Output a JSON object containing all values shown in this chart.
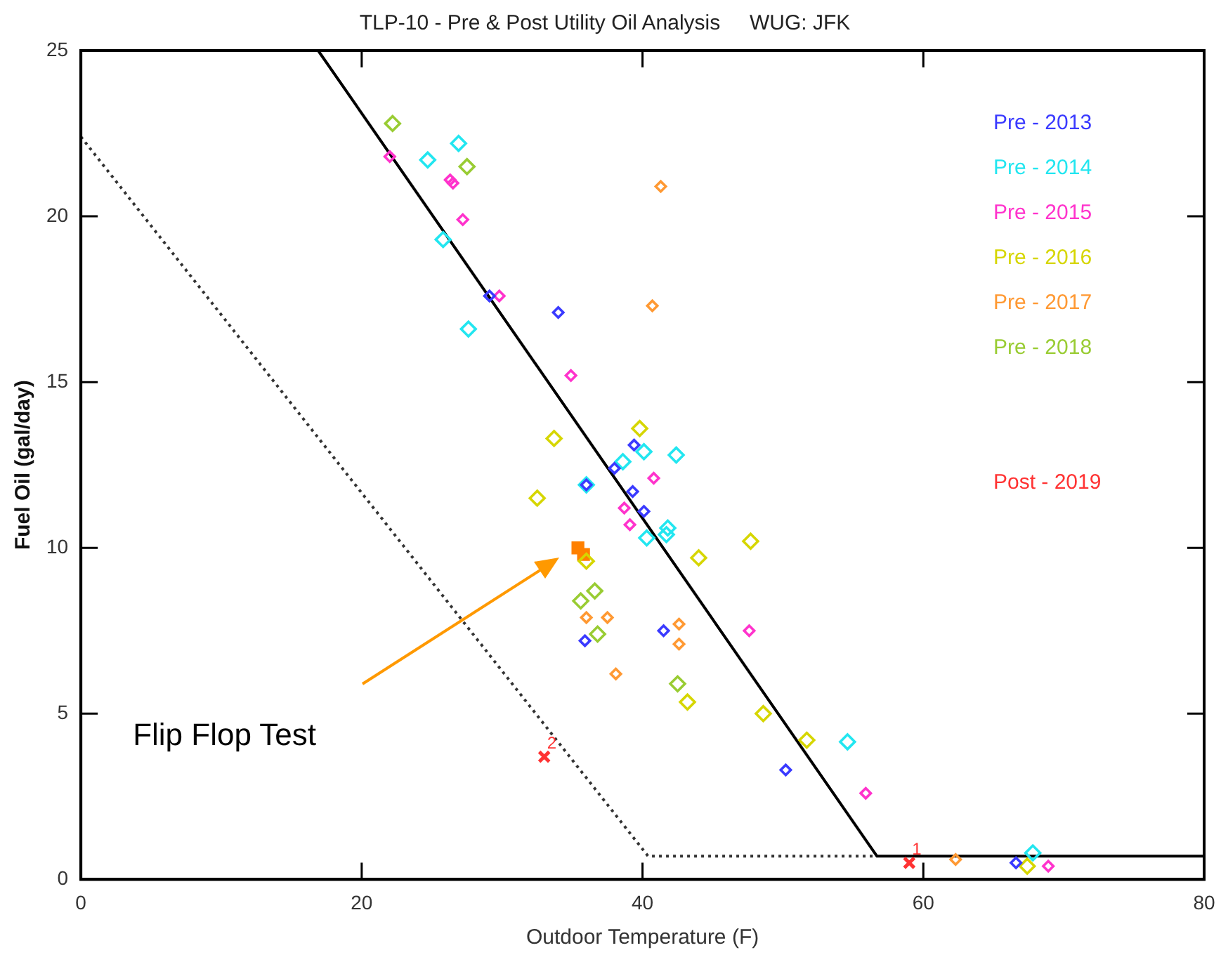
{
  "chart_data": {
    "type": "scatter",
    "title": "TLP-10 - Pre & Post Utility Oil Analysis     WUG: JFK",
    "xlabel": "Outdoor Temperature (F)",
    "ylabel": "Fuel Oil (gal/day)",
    "xlim": [
      0,
      80
    ],
    "xticks": [
      0,
      20,
      40,
      60,
      80
    ],
    "ylim": [
      0,
      25
    ],
    "yticks": [
      0,
      5,
      10,
      15,
      20,
      25
    ],
    "grid": false,
    "legend": "top right",
    "marker": "diamond",
    "series": [
      {
        "name": "Pre - 2013",
        "color": "#3a3aff",
        "x": [
          34.0,
          29.1,
          39.4,
          38.0,
          36.0,
          39.3,
          40.1,
          41.5,
          35.9,
          50.2,
          66.6
        ],
        "values": [
          17.1,
          17.6,
          13.1,
          12.4,
          11.9,
          11.7,
          11.1,
          7.5,
          7.2,
          3.3,
          0.5
        ]
      },
      {
        "name": "Pre - 2014",
        "color": "#22e6f0",
        "x": [
          26.9,
          24.7,
          25.8,
          27.6,
          40.1,
          42.4,
          38.6,
          36.0,
          40.3,
          41.7,
          41.8,
          54.6,
          67.8
        ],
        "values": [
          22.2,
          21.7,
          19.3,
          16.6,
          12.9,
          12.8,
          12.6,
          11.9,
          10.3,
          10.4,
          10.6,
          4.15,
          0.8
        ]
      },
      {
        "name": "Pre - 2015",
        "color": "#ff33cc",
        "x": [
          22.0,
          26.3,
          26.5,
          27.2,
          29.8,
          34.9,
          40.8,
          38.7,
          39.1,
          47.6,
          55.9,
          68.9
        ],
        "values": [
          21.8,
          21.1,
          21.0,
          19.9,
          17.6,
          15.2,
          12.1,
          11.2,
          10.7,
          7.5,
          2.6,
          0.4
        ]
      },
      {
        "name": "Pre - 2016",
        "color": "#d6d600",
        "x": [
          33.7,
          39.8,
          32.5,
          47.7,
          44.0,
          36.0,
          43.2,
          48.6,
          51.7,
          67.4
        ],
        "values": [
          13.3,
          13.6,
          11.5,
          10.2,
          9.7,
          9.6,
          5.35,
          5.0,
          4.2,
          0.4
        ]
      },
      {
        "name": "Pre - 2017",
        "color": "#ff9933",
        "x": [
          41.3,
          40.7,
          36.0,
          37.5,
          42.6,
          42.6,
          38.1,
          62.3
        ],
        "values": [
          20.9,
          17.3,
          7.9,
          7.9,
          7.7,
          7.1,
          6.2,
          0.6
        ]
      },
      {
        "name": "Pre - 2018",
        "color": "#99cc33",
        "x": [
          22.2,
          27.5,
          36.6,
          35.6,
          36.8,
          42.5
        ],
        "values": [
          22.8,
          21.5,
          8.7,
          8.4,
          7.4,
          5.9
        ]
      },
      {
        "name": "Post - 2019",
        "color": "#ff3333",
        "marker": "cross",
        "x": [
          33.0,
          59.0
        ],
        "values": [
          3.7,
          0.5
        ]
      },
      {
        "color": "#ff8000",
        "marker": "square",
        "x": [
          35.4,
          35.8
        ],
        "values": [
          10.0,
          9.8
        ]
      },
      {
        "type": "line",
        "color": "#000000",
        "line_style": "solid",
        "marker": "none",
        "x": [
          16.9,
          56.7,
          80
        ],
        "values": [
          25,
          0.7,
          0.7
        ]
      },
      {
        "type": "line",
        "color": "#333333",
        "line_style": "dotted",
        "marker": "none",
        "x": [
          0,
          40.4,
          56.7
        ],
        "values": [
          22.4,
          0.7,
          0.7
        ]
      }
    ],
    "annotations": [
      "Flip Flop Test",
      {
        "text": "2",
        "x": 33.0,
        "y": 3.7
      },
      {
        "text": "1",
        "x": 59.0,
        "y": 0.5
      }
    ]
  }
}
